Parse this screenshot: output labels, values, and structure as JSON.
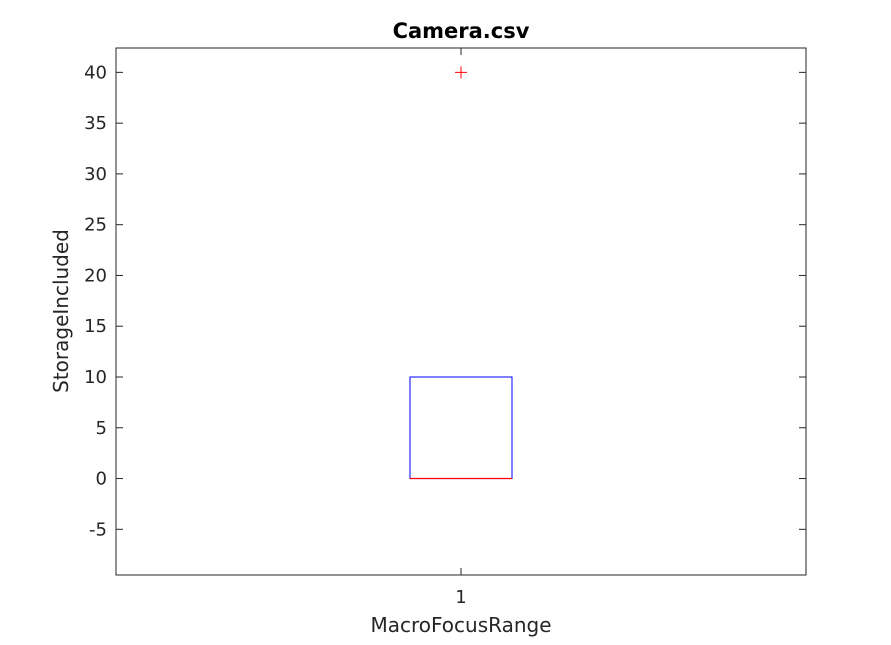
{
  "chart_data": {
    "type": "box",
    "title": "Camera.csv",
    "xlabel": "MacroFocusRange",
    "ylabel": "StorageIncluded",
    "categories": [
      "1"
    ],
    "ylim": [
      -9.5,
      42.4
    ],
    "yticks": [
      -5,
      0,
      5,
      10,
      15,
      20,
      25,
      30,
      35,
      40
    ],
    "ytick_labels": [
      "-5",
      "0",
      "5",
      "10",
      "15",
      "20",
      "25",
      "30",
      "35",
      "40"
    ],
    "grid": false,
    "series": [
      {
        "category": "1",
        "whisker_low": 0,
        "q1": 0,
        "median": 0,
        "q3": 10,
        "whisker_high": 10,
        "outliers": [
          40
        ]
      }
    ],
    "colors": {
      "box": "#0000ff",
      "median": "#ff0000",
      "outlier": "#ff0000",
      "axis": "#262626"
    }
  }
}
